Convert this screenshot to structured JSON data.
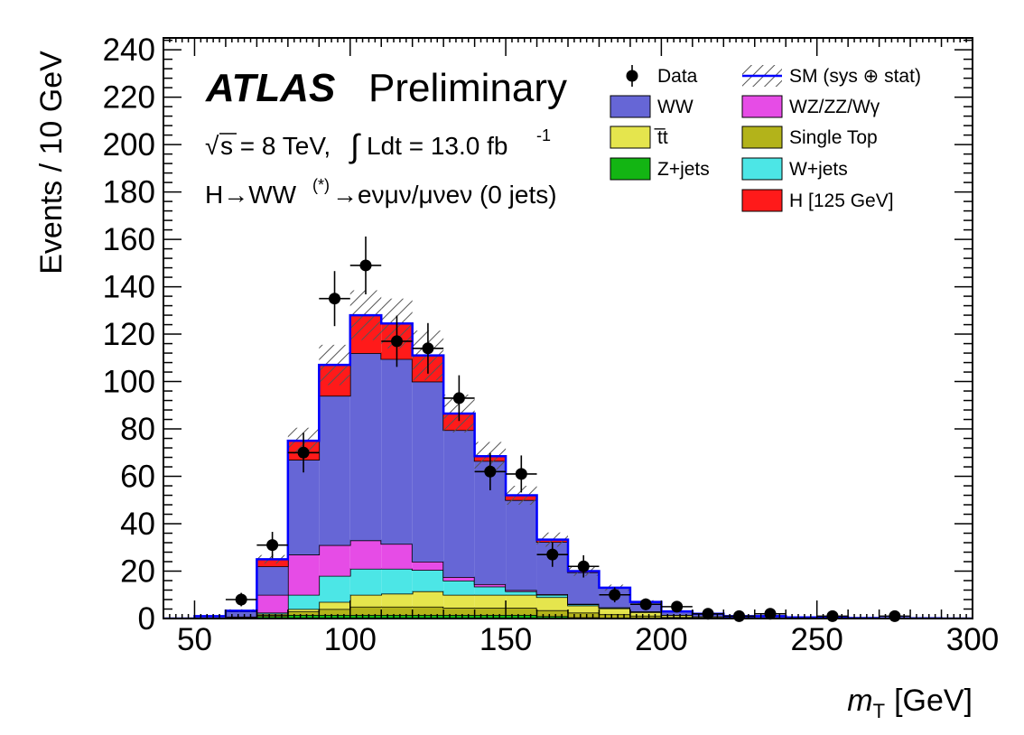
{
  "chart_data": {
    "type": "stacked-histogram",
    "title": "ATLAS",
    "subtitle": "Preliminary",
    "annotations": {
      "energy_prefix": "s = 8 TeV, ",
      "lumi_text": "Ldt = 13.0 fb",
      "lumi_exp": "-1",
      "channel_prefix": "H→WW",
      "channel_sup": "(*)",
      "channel_suffix": "→eνμν/μνeν (0 jets)"
    },
    "xlabel_italic": "m",
    "xlabel_sub": "T",
    "xlabel_rest": "[GeV]",
    "ylabel": "Events / 10 GeV",
    "xlim": [
      40,
      300
    ],
    "ylim": [
      0,
      245
    ],
    "x_ticks": [
      50,
      100,
      150,
      200,
      250,
      300
    ],
    "y_ticks": [
      0,
      20,
      40,
      60,
      80,
      100,
      120,
      140,
      160,
      180,
      200,
      220,
      240
    ],
    "bin_edges": [
      40,
      50,
      60,
      70,
      80,
      90,
      100,
      110,
      120,
      130,
      140,
      150,
      160,
      170,
      180,
      190,
      200,
      210,
      220,
      230,
      240,
      250,
      260,
      270,
      280,
      290,
      300
    ],
    "stack": [
      {
        "name": "Z+jets",
        "color": "#13b513",
        "values": [
          0,
          0,
          0,
          1,
          1.5,
          1.5,
          1.5,
          1.5,
          1.5,
          1.5,
          1.5,
          1.5,
          1,
          0.5,
          0.3,
          0.2,
          0.1,
          0,
          0,
          0,
          0,
          0,
          0,
          0,
          0,
          0
        ]
      },
      {
        "name": "Single Top",
        "color": "#b3b31a",
        "values": [
          0,
          0,
          0,
          0.5,
          1.5,
          2.5,
          3.5,
          3.5,
          3.5,
          3,
          3,
          3,
          2.5,
          2,
          1.5,
          1,
          0.5,
          0.3,
          0.2,
          0.1,
          0,
          0,
          0,
          0,
          0,
          0
        ]
      },
      {
        "name": "t̅t",
        "color": "#e5e54d",
        "values": [
          0,
          0,
          0,
          0.5,
          1,
          3,
          5,
          5.5,
          6.5,
          5.5,
          5.5,
          5.5,
          5.5,
          3,
          2.5,
          1.5,
          0.8,
          0.5,
          0.3,
          0.2,
          0.1,
          0.1,
          0,
          0,
          0,
          0
        ]
      },
      {
        "name": "W+jets",
        "color": "#4ce6e6",
        "values": [
          0,
          0.2,
          0.5,
          0.5,
          6,
          11,
          11,
          10.5,
          9,
          6,
          3.5,
          1.5,
          1,
          0.5,
          0.3,
          0.2,
          0.1,
          0.1,
          0,
          0,
          0,
          0,
          0,
          0,
          0,
          0
        ]
      },
      {
        "name": "WZ/ZZ/Wγ",
        "color": "#e64ce6",
        "values": [
          0,
          0,
          0.3,
          7.5,
          17,
          13,
          12,
          10.5,
          3.5,
          1.5,
          1,
          0.5,
          0.3,
          0.2,
          0.1,
          0.1,
          0,
          0,
          0,
          0,
          0,
          0,
          0,
          0,
          0,
          0
        ]
      },
      {
        "name": "WW",
        "color": "#6666d6",
        "values": [
          0,
          0.8,
          2.2,
          12,
          40,
          63,
          79,
          78,
          76,
          62,
          52,
          38,
          22,
          13.3,
          8.3,
          4,
          1.5,
          1.1,
          0.5,
          0.7,
          0.4,
          0.4,
          0.2,
          0.1,
          0.1,
          0
        ]
      },
      {
        "name": "H [125 GeV]",
        "color": "#ff1a1a",
        "values": [
          0,
          0,
          0.3,
          3,
          8,
          13,
          16,
          15,
          11,
          7,
          2,
          2,
          1,
          0.5,
          0,
          0,
          0,
          0,
          0,
          0,
          0,
          0,
          0,
          0,
          0,
          0
        ]
      }
    ],
    "sm_band_halfwidth": [
      0,
      0.3,
      0.6,
      1.8,
      5.5,
      8.5,
      10.5,
      10.5,
      10.5,
      8,
      6,
      4,
      3,
      2,
      1.3,
      0.7,
      0.4,
      0.3,
      0.2,
      0.2,
      0.1,
      0.1,
      0.1,
      0.1,
      0.1,
      0
    ],
    "data_points": {
      "name": "Data",
      "x": [
        65,
        75,
        85,
        95,
        105,
        115,
        125,
        135,
        145,
        155,
        165,
        175,
        185,
        195,
        205,
        215,
        225,
        235,
        255,
        275
      ],
      "y": [
        8,
        31,
        70,
        135,
        149,
        117,
        114,
        93,
        62,
        61,
        27,
        22,
        10,
        6,
        5,
        2,
        1,
        2,
        1,
        1
      ]
    },
    "legend": [
      {
        "label": "Data",
        "kind": "marker"
      },
      {
        "label": "SM (sys ⊕ stat)",
        "kind": "band"
      },
      {
        "label": "WW",
        "color": "#6666d6",
        "kind": "box"
      },
      {
        "label": "WZ/ZZ/Wγ",
        "color": "#e64ce6",
        "kind": "box"
      },
      {
        "label": "t̅t",
        "color": "#e5e54d",
        "kind": "box"
      },
      {
        "label": "Single Top",
        "color": "#b3b31a",
        "kind": "box"
      },
      {
        "label": "Z+jets",
        "color": "#13b513",
        "kind": "box"
      },
      {
        "label": "W+jets",
        "color": "#4ce6e6",
        "kind": "box"
      },
      {
        "label": "H [125 GeV]",
        "color": "#ff1a1a",
        "kind": "box"
      }
    ],
    "sm_line_color": "#0000ff"
  }
}
